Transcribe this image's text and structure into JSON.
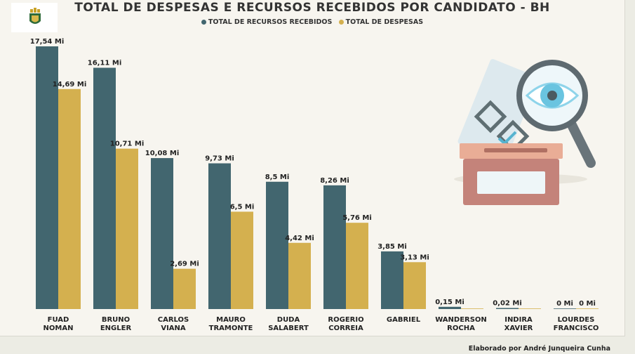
{
  "header": {
    "title": "TOTAL DE DESPESAS E RECURSOS RECEBIDOS POR CANDIDATO - BH"
  },
  "footer": {
    "credit": "Elaborado por André Junqueira Cunha"
  },
  "colors": {
    "recursos": "#42666f",
    "despesas": "#d4b04f",
    "background": "#f7f5ef"
  },
  "icons": {
    "logo": "bh-coat-of-arms-icon",
    "illustration": "ballot-box-magnifier-icon"
  },
  "chart_data": {
    "type": "bar",
    "title": "TOTAL DE DESPESAS E RECURSOS RECEBIDOS POR CANDIDATO - BH",
    "xlabel": "",
    "ylabel": "",
    "legend": "top",
    "grid": false,
    "ylim": [
      0,
      17.54
    ],
    "categories": [
      [
        "FUAD",
        "NOMAN"
      ],
      [
        "BRUNO",
        "ENGLER"
      ],
      [
        "CARLOS",
        "VIANA"
      ],
      [
        "MAURO",
        "TRAMONTE"
      ],
      [
        "DUDA",
        "SALABERT"
      ],
      [
        "ROGERIO",
        "CORREIA"
      ],
      [
        "GABRIEL"
      ],
      [
        "WANDERSON",
        "ROCHA"
      ],
      [
        "INDIRA",
        "XAVIER"
      ],
      [
        "LOURDES",
        "FRANCISCO"
      ]
    ],
    "series": [
      {
        "name": "TOTAL DE RECURSOS RECEBIDOS",
        "values": [
          17.54,
          16.11,
          10.08,
          9.73,
          8.5,
          8.26,
          3.85,
          0.15,
          0.02,
          0
        ],
        "labels": [
          "17,54 Mi",
          "16,11 Mi",
          "10,08 Mi",
          "9,73 Mi",
          "8,5 Mi",
          "8,26 Mi",
          "3,85 Mi",
          "0,15 Mi",
          "0,02 Mi",
          "0 Mi"
        ]
      },
      {
        "name": "TOTAL DE DESPESAS",
        "values": [
          14.69,
          10.71,
          2.69,
          6.5,
          4.42,
          5.76,
          3.13,
          0,
          0,
          0
        ],
        "labels": [
          "14,69 Mi",
          "10,71 Mi",
          "2,69 Mi",
          "6,5 Mi",
          "4,42 Mi",
          "5,76 Mi",
          "3,13 Mi",
          "",
          "",
          "0 Mi"
        ]
      }
    ]
  }
}
